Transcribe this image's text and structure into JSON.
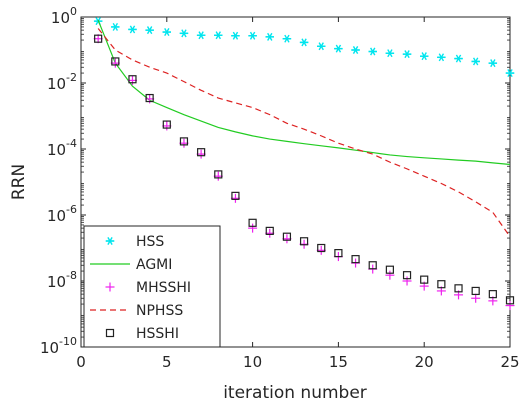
{
  "chart_data": {
    "type": "line",
    "xlabel": "iteration number",
    "ylabel": "RRN",
    "xlim": [
      0,
      25
    ],
    "ylim_log10": [
      -10,
      0
    ],
    "yscale": "log",
    "grid": false,
    "legend_position": "bottom-left",
    "x_ticks": [
      0,
      5,
      10,
      15,
      20,
      25
    ],
    "x_tick_labels": [
      "0",
      "5",
      "10",
      "15",
      "20",
      "25"
    ],
    "y_ticks_log10": [
      -10,
      -8,
      -6,
      -4,
      -2,
      0
    ],
    "y_tick_labels": [
      {
        "base": "10",
        "exp": "-10"
      },
      {
        "base": "10",
        "exp": "-8"
      },
      {
        "base": "10",
        "exp": "-6"
      },
      {
        "base": "10",
        "exp": "-4"
      },
      {
        "base": "10",
        "exp": "-2"
      },
      {
        "base": "10",
        "exp": "0"
      }
    ],
    "series": [
      {
        "name": "HSS",
        "style": "marker",
        "marker": "asterisk",
        "color": "#00e5ee",
        "x": [
          1,
          2,
          3,
          4,
          5,
          6,
          7,
          8,
          9,
          10,
          11,
          12,
          13,
          14,
          15,
          16,
          17,
          18,
          19,
          20,
          21,
          22,
          23,
          24,
          25
        ],
        "y": [
          0.75,
          0.5,
          0.42,
          0.4,
          0.35,
          0.32,
          0.28,
          0.28,
          0.27,
          0.27,
          0.25,
          0.22,
          0.17,
          0.13,
          0.11,
          0.1,
          0.09,
          0.08,
          0.075,
          0.065,
          0.06,
          0.055,
          0.045,
          0.04,
          0.02
        ]
      },
      {
        "name": "AGMI",
        "style": "line",
        "dash": "solid",
        "color": "#22cc22",
        "x": [
          1,
          2,
          3,
          4,
          5,
          6,
          7,
          8,
          9,
          10,
          11,
          12,
          13,
          14,
          15,
          16,
          17,
          18,
          19,
          20,
          21,
          22,
          23,
          24,
          25
        ],
        "y": [
          0.8,
          0.04,
          0.008,
          0.003,
          0.0018,
          0.0011,
          0.0007,
          0.00045,
          0.00033,
          0.00025,
          0.0002,
          0.00017,
          0.000145,
          0.000125,
          0.000108,
          9.2e-05,
          7.8e-05,
          6.6e-05,
          5.9e-05,
          5.4e-05,
          5e-05,
          4.6e-05,
          4.3e-05,
          3.8e-05,
          3.4e-05
        ]
      },
      {
        "name": "MHSSHI",
        "style": "marker",
        "marker": "plus",
        "color": "#ee22ee",
        "x": [
          1,
          2,
          3,
          4,
          5,
          6,
          7,
          8,
          9,
          10,
          11,
          12,
          13,
          14,
          15,
          16,
          17,
          18,
          19,
          20,
          21,
          22,
          23,
          24,
          25
        ],
        "y": [
          0.22,
          0.04,
          0.012,
          0.0033,
          0.0005,
          0.00015,
          7e-05,
          1.5e-05,
          3.2e-06,
          4e-07,
          2.8e-07,
          1.9e-07,
          1.3e-07,
          8.5e-08,
          5.5e-08,
          3.5e-08,
          2.3e-08,
          1.5e-08,
          1e-08,
          7e-09,
          5e-09,
          3.8e-09,
          3e-09,
          2.5e-09,
          1.8e-09
        ]
      },
      {
        "name": "NPHSS",
        "style": "line",
        "dash": "dashed",
        "color": "#dd2222",
        "x": [
          1,
          2,
          3,
          4,
          5,
          6,
          7,
          8,
          9,
          10,
          11,
          12,
          13,
          14,
          15,
          16,
          17,
          18,
          19,
          20,
          21,
          22,
          23,
          24,
          25
        ],
        "y": [
          0.45,
          0.1,
          0.05,
          0.03,
          0.02,
          0.011,
          0.006,
          0.0035,
          0.0025,
          0.0018,
          0.0011,
          0.0006,
          0.0004,
          0.00025,
          0.00015,
          0.0001,
          7e-05,
          4e-05,
          2.5e-05,
          1.5e-05,
          9e-06,
          5e-06,
          2.5e-06,
          1.2e-06,
          2.2e-07
        ]
      },
      {
        "name": "HSSHI",
        "style": "marker",
        "marker": "square",
        "color": "#222222",
        "x": [
          1,
          2,
          3,
          4,
          5,
          6,
          7,
          8,
          9,
          10,
          11,
          12,
          13,
          14,
          15,
          16,
          17,
          18,
          19,
          20,
          21,
          22,
          23,
          24,
          25
        ],
        "y": [
          0.22,
          0.045,
          0.013,
          0.0035,
          0.00055,
          0.00017,
          8e-05,
          1.7e-05,
          3.8e-06,
          5.8e-07,
          3.3e-07,
          2.2e-07,
          1.6e-07,
          1e-07,
          7e-08,
          4.6e-08,
          3e-08,
          2.2e-08,
          1.5e-08,
          1.1e-08,
          8e-09,
          6e-09,
          5e-09,
          4e-09,
          2.6e-09
        ]
      }
    ]
  }
}
